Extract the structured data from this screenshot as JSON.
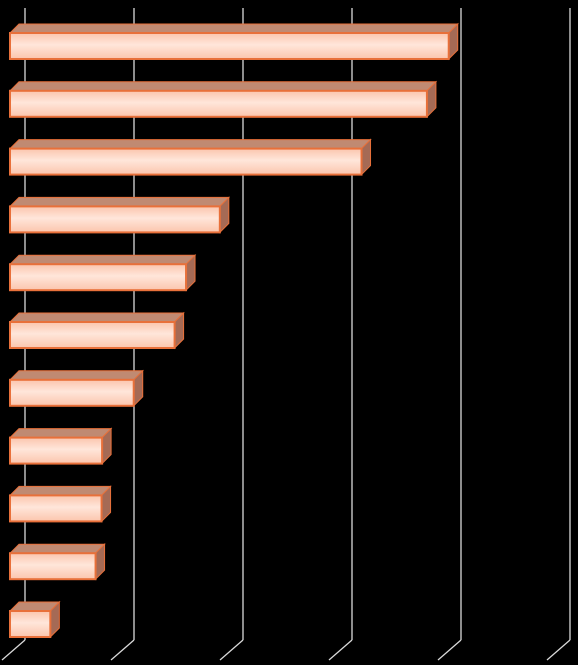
{
  "chart_data": {
    "type": "bar",
    "orientation": "horizontal",
    "categories": [
      "",
      "",
      "",
      "",
      "",
      "",
      "",
      "",
      "",
      "",
      ""
    ],
    "values": [
      80.5,
      76.5,
      64.5,
      38.5,
      32.3,
      30.2,
      22.7,
      16.9,
      16.8,
      15.7,
      7.4
    ],
    "xlim": [
      0,
      100
    ],
    "grid": true,
    "style": "3d",
    "colors": {
      "background": "#000000",
      "grid": "#d9d9d9",
      "bar_front": "#fbc5ad",
      "bar_front_light": "#ffe6da",
      "bar_edge": "#e8703a",
      "bar_top": "#c08a72",
      "bar_side": "#a56a55"
    }
  }
}
